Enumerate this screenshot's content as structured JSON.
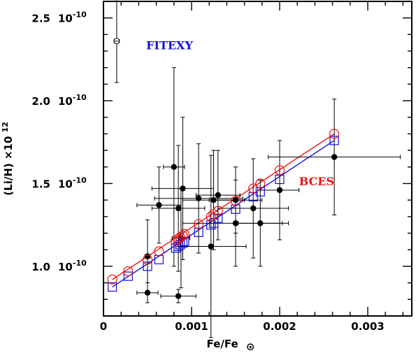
{
  "chart_data": {
    "type": "scatter",
    "xlabel": "Fe/Fe",
    "xlabel_symbol": "⊙",
    "ylabel": "(Li/H) ×10",
    "ylabel_exp": "12",
    "xlim": [
      0,
      0.0035
    ],
    "ylim": [
      0.7,
      2.6
    ],
    "x_ticks": [
      {
        "value": 0,
        "label": "0"
      },
      {
        "value": 0.001,
        "label": "0.001"
      },
      {
        "value": 0.002,
        "label": "0.002"
      },
      {
        "value": 0.003,
        "label": "0.003"
      }
    ],
    "y_ticks": [
      {
        "value": 1.0,
        "mant": "1.0",
        "exp_label": "10",
        "exp": "-10"
      },
      {
        "value": 1.5,
        "mant": "1.5",
        "exp_label": "10",
        "exp": "-10"
      },
      {
        "value": 2.0,
        "mant": "2.0",
        "exp_label": "10",
        "exp": "-10"
      },
      {
        "value": 2.5,
        "mant": "2.5",
        "exp_label": "10",
        "exp": "-10"
      }
    ],
    "annotations": [
      {
        "text": "FITEXY",
        "x": 0.00075,
        "y": 2.31,
        "color": "#1010dd"
      },
      {
        "text": "BCES",
        "x": 0.00242,
        "y": 1.49,
        "color": "#ee1111"
      }
    ],
    "colors": {
      "fitexy": "#1010dd",
      "bces": "#ee1111",
      "data": "#000000"
    },
    "data_points": [
      {
        "x": 0.00015,
        "y": 2.36,
        "xerr": 3e-05,
        "yerr": [
          0.52,
          0.25
        ],
        "open": true
      },
      {
        "x": 0.0005,
        "y": 1.06,
        "xerr": 3e-05,
        "yerr": [
          0.22,
          0.22
        ]
      },
      {
        "x": 0.0005,
        "y": 0.84,
        "xerr": 0.00012,
        "yerr": [
          0.06,
          0.06
        ]
      },
      {
        "x": 0.00063,
        "y": 1.37,
        "xerr": 0.00025,
        "yerr": [
          0.23,
          0.23
        ]
      },
      {
        "x": 0.0008,
        "y": 1.6,
        "xerr": 0.00012,
        "yerr": [
          0.6,
          0.6
        ]
      },
      {
        "x": 0.00085,
        "y": 1.35,
        "xerr": 0.0003,
        "yerr": [
          0.38,
          0.38
        ]
      },
      {
        "x": 0.00085,
        "y": 0.82,
        "xerr": 0.0002,
        "yerr": [
          0.04,
          0.04
        ]
      },
      {
        "x": 0.00088,
        "y": 1.17,
        "xerr": 0.0001,
        "yerr": [
          0.3,
          0.3
        ]
      },
      {
        "x": 0.0009,
        "y": 1.47,
        "xerr": 0.00035,
        "yerr": [
          0.43,
          0.43
        ]
      },
      {
        "x": 0.00108,
        "y": 1.41,
        "xerr": 0.0005,
        "yerr": [
          0.33,
          0.33
        ]
      },
      {
        "x": 0.00122,
        "y": 1.12,
        "xerr": 0.0004,
        "yerr": [
          0.55,
          0.55
        ]
      },
      {
        "x": 0.00125,
        "y": 1.4,
        "xerr": 0.00035,
        "yerr": [
          0.3,
          0.3
        ]
      },
      {
        "x": 0.0013,
        "y": 1.43,
        "xerr": 0.00025,
        "yerr": [
          0.27,
          0.27
        ]
      },
      {
        "x": 0.0015,
        "y": 1.26,
        "xerr": 0.0006,
        "yerr": [
          0.26,
          0.26
        ]
      },
      {
        "x": 0.0015,
        "y": 1.4,
        "xerr": 0.0003,
        "yerr": [
          0.2,
          0.2
        ]
      },
      {
        "x": 0.0017,
        "y": 1.35,
        "xerr": 0.0004,
        "yerr": [
          0.3,
          0.3
        ]
      },
      {
        "x": 0.00178,
        "y": 1.26,
        "xerr": 0.00025,
        "yerr": [
          0.26,
          0.26
        ]
      },
      {
        "x": 0.002,
        "y": 1.46,
        "xerr": 0.00022,
        "yerr": [
          0.3,
          0.3
        ]
      },
      {
        "x": 0.00262,
        "y": 1.66,
        "xerr": 0.00075,
        "yerr": [
          0.35,
          0.35
        ]
      }
    ],
    "series": [
      {
        "name": "FITEXY",
        "marker": "square",
        "line": [
          [
            0.0001,
            0.875
          ],
          [
            0.00262,
            1.76
          ]
        ],
        "points": [
          [
            0.0001,
            0.875
          ],
          [
            0.00028,
            0.94
          ],
          [
            0.0005,
            1.0
          ],
          [
            0.00063,
            1.04
          ],
          [
            0.00082,
            1.11
          ],
          [
            0.00085,
            1.12
          ],
          [
            0.00087,
            1.13
          ],
          [
            0.0009,
            1.14
          ],
          [
            0.00092,
            1.15
          ],
          [
            0.00108,
            1.205
          ],
          [
            0.00122,
            1.25
          ],
          [
            0.00125,
            1.26
          ],
          [
            0.0013,
            1.29
          ],
          [
            0.0015,
            1.345
          ],
          [
            0.0017,
            1.42
          ],
          [
            0.00178,
            1.45
          ],
          [
            0.002,
            1.525
          ],
          [
            0.00262,
            1.76
          ]
        ]
      },
      {
        "name": "BCES",
        "marker": "circle",
        "line": [
          [
            0.0001,
            0.92
          ],
          [
            0.00262,
            1.8
          ]
        ],
        "points": [
          [
            0.0001,
            0.92
          ],
          [
            0.00028,
            0.97
          ],
          [
            0.0005,
            1.04
          ],
          [
            0.00063,
            1.09
          ],
          [
            0.00082,
            1.155
          ],
          [
            0.00085,
            1.165
          ],
          [
            0.00087,
            1.175
          ],
          [
            0.0009,
            1.185
          ],
          [
            0.00092,
            1.195
          ],
          [
            0.00108,
            1.255
          ],
          [
            0.00122,
            1.3
          ],
          [
            0.00125,
            1.315
          ],
          [
            0.0013,
            1.335
          ],
          [
            0.0015,
            1.395
          ],
          [
            0.0017,
            1.47
          ],
          [
            0.00178,
            1.5
          ],
          [
            0.002,
            1.58
          ],
          [
            0.00262,
            1.8
          ]
        ]
      }
    ]
  }
}
